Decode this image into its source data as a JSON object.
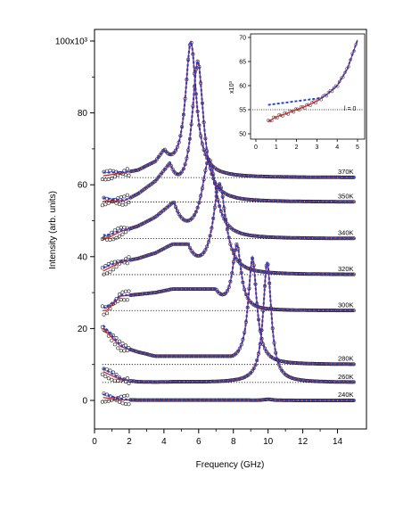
{
  "chart_data": [
    {
      "type": "scatter",
      "title": "",
      "xlabel": "Frequency (GHz)",
      "ylabel": "Intensity (arb. units)",
      "xlim": [
        0,
        15
      ],
      "ylim": [
        -3,
        101
      ],
      "xticks": [
        0,
        2,
        4,
        6,
        8,
        10,
        12,
        14
      ],
      "yticks": [
        0,
        20,
        40,
        60,
        80,
        100
      ],
      "ytick_labels": [
        "0",
        "20",
        "40",
        "60",
        "80",
        "100x10³"
      ],
      "grid": false,
      "marker": "open-circle",
      "fit_colors": {
        "red": "#e0201c",
        "blue": "#1f3fd8"
      },
      "series": [
        {
          "name": "370K",
          "baseline": 62,
          "peak_x": 5.55,
          "peak_y": 99.5,
          "peak_width": 0.38,
          "low_x": [
            0.5,
            1.5,
            2.5,
            3.5,
            4.5
          ],
          "low_y": [
            62.5,
            63.2,
            64.1,
            66.5,
            73
          ]
        },
        {
          "name": "350K",
          "baseline": 55.2,
          "peak_x": 5.95,
          "peak_y": 94,
          "peak_width": 0.4,
          "low_x": [
            0.5,
            1.5,
            2.5,
            3.5,
            4.5
          ],
          "low_y": [
            53,
            55,
            57.5,
            61,
            67
          ]
        },
        {
          "name": "340K",
          "baseline": 45,
          "peak_x": 6.6,
          "peak_y": 67,
          "peak_width": 0.5,
          "low_x": [
            0.5,
            1.5,
            2.5,
            3.5,
            4.5
          ],
          "low_y": [
            44.5,
            47,
            48.5,
            51,
            55
          ]
        },
        {
          "name": "320K",
          "baseline": 35,
          "peak_x": 7.2,
          "peak_y": 60,
          "peak_width": 0.45,
          "low_x": [
            0.5,
            1.5,
            2.5,
            3.5,
            4.5
          ],
          "low_y": [
            36,
            38.5,
            39.5,
            41,
            43.5
          ]
        },
        {
          "name": "300K",
          "baseline": 25,
          "peak_x": 8.2,
          "peak_y": 43,
          "peak_width": 0.3,
          "low_x": [
            0.5,
            1.5,
            2.5,
            3.5,
            4.5
          ],
          "low_y": [
            24,
            29,
            29.5,
            30,
            31
          ]
        },
        {
          "name": "280K",
          "baseline": 10,
          "peak_x": 9.1,
          "peak_y": 39.5,
          "peak_width": 0.3,
          "low_x": [
            0.5,
            1.5,
            2.5,
            3.5,
            4.5
          ],
          "low_y": [
            20,
            15,
            13.5,
            12.3,
            12.3
          ]
        },
        {
          "name": "260K",
          "baseline": 5,
          "peak_x": 9.95,
          "peak_y": 38.5,
          "peak_width": 0.28,
          "low_x": [
            0.5,
            1.5,
            2.5,
            3.5,
            4.5
          ],
          "low_y": [
            8,
            5.8,
            5.2,
            5.1,
            5.2
          ]
        },
        {
          "name": "240K",
          "baseline": 0,
          "peak_x": 10,
          "peak_y": 0.3,
          "peak_width": 0.3,
          "low_x": [
            0.5,
            1.5,
            2.5,
            3.5,
            4.5
          ],
          "low_y": [
            0.8,
            0.2,
            0.1,
            0.1,
            0.1
          ]
        }
      ]
    },
    {
      "type": "scatter",
      "title": "",
      "xlabel": "",
      "ylabel": "x10³",
      "xlim": [
        0,
        5.2
      ],
      "ylim": [
        50,
        70
      ],
      "xticks": [
        0,
        1,
        2,
        3,
        4,
        5
      ],
      "yticks": [
        50,
        55,
        60,
        65,
        70
      ],
      "annotation": "l = 0",
      "reference_line_y": 55,
      "x": [
        0.6,
        1.0,
        1.5,
        2.0,
        2.5,
        3.0,
        3.5,
        4.0,
        4.5,
        5.0
      ],
      "y": [
        52.5,
        53.5,
        54.2,
        55.0,
        55.8,
        56.8,
        58.2,
        60.0,
        63.5,
        69.5
      ]
    }
  ]
}
